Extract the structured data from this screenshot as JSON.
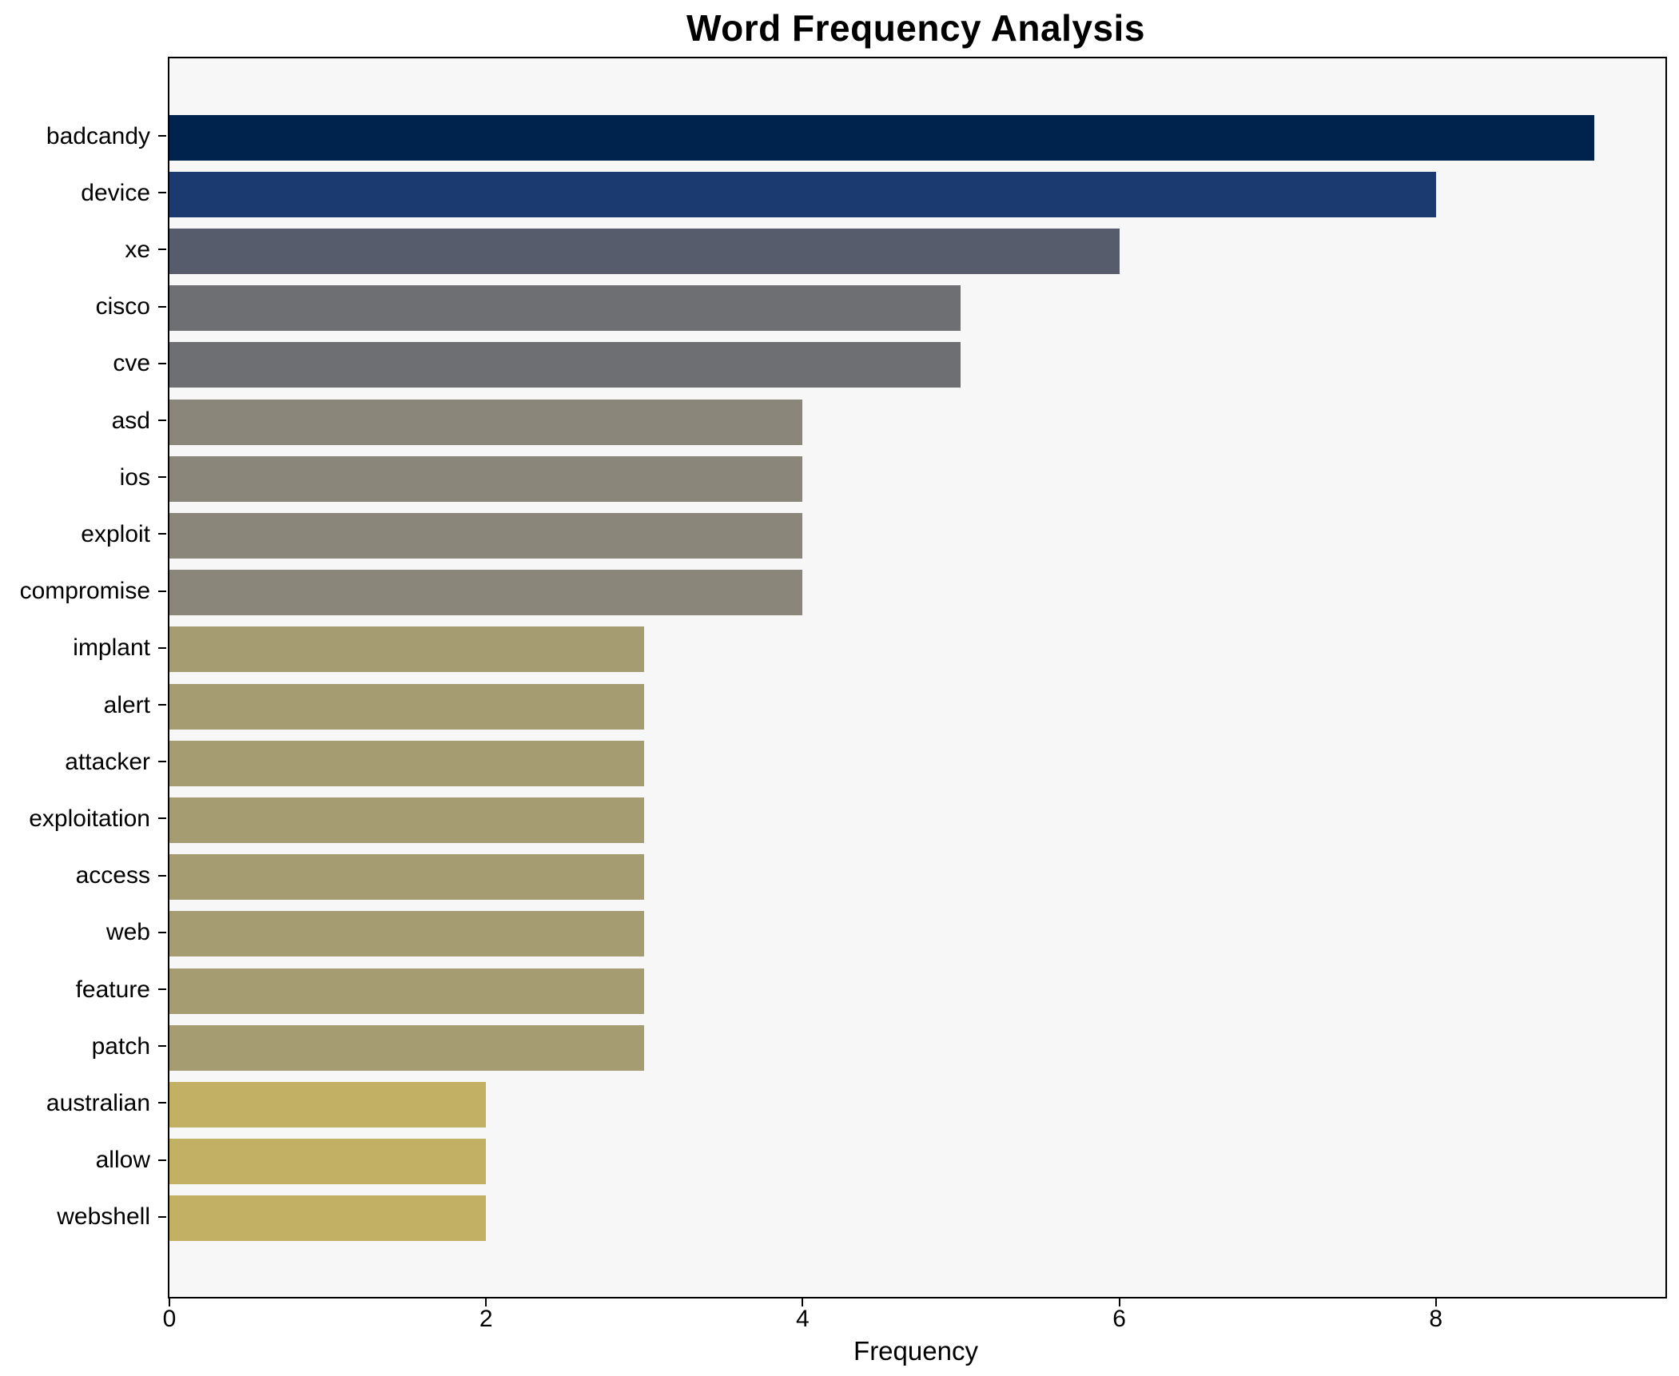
{
  "chart_data": {
    "type": "bar",
    "orientation": "horizontal",
    "title": "Word Frequency Analysis",
    "xlabel": "Frequency",
    "ylabel": "",
    "categories": [
      "badcandy",
      "device",
      "xe",
      "cisco",
      "cve",
      "asd",
      "ios",
      "exploit",
      "compromise",
      "implant",
      "alert",
      "attacker",
      "exploitation",
      "access",
      "web",
      "feature",
      "patch",
      "australian",
      "allow",
      "webshell"
    ],
    "values": [
      9,
      8,
      6,
      5,
      5,
      4,
      4,
      4,
      4,
      3,
      3,
      3,
      3,
      3,
      3,
      3,
      3,
      2,
      2,
      2
    ],
    "bar_colors": [
      "#00234d",
      "#1a3a70",
      "#565c6c",
      "#6e6f72",
      "#6e6f72",
      "#8a877a",
      "#8a877a",
      "#8a877a",
      "#8a877a",
      "#a59c72",
      "#a59c72",
      "#a59c72",
      "#a59c72",
      "#a59c72",
      "#a59c72",
      "#a59c72",
      "#a59c72",
      "#c2b065",
      "#c2b065",
      "#c2b065"
    ],
    "value_color_map": {
      "9": "#00234d",
      "8": "#1a3a70",
      "6": "#565c6c",
      "5": "#6e6f72",
      "4": "#8a877a",
      "3": "#a59c72",
      "2": "#c2b065"
    },
    "x_ticks": [
      0,
      2,
      4,
      6,
      8
    ],
    "xlim": [
      0,
      9.45
    ],
    "grid": false,
    "legend": "none",
    "plot_background": "#f7f7f7",
    "figure_background": "#ffffff",
    "spine_color": "#000000",
    "text_color": "#000000"
  }
}
